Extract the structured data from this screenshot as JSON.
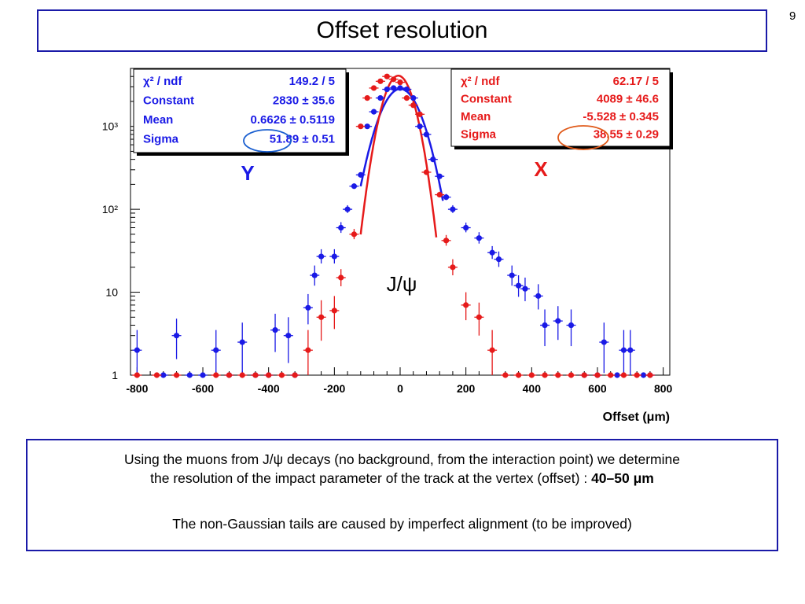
{
  "slide": {
    "title": "Offset resolution",
    "page_number": "9",
    "description_line1": "Using the muons from J/ψ decays (no background, from the interaction point) we determine",
    "description_line2": "the resolution of the impact parameter of the track at the vertex (offset) : ",
    "description_highlight": "40–50 μm",
    "description_line3": "The non-Gaussian tails are caused by imperfect alignment (to be improved)"
  },
  "chart_data": {
    "type": "scatter",
    "xlabel": "Offset (μm)",
    "ylabel": "",
    "xlim": [
      -820,
      820
    ],
    "ylim": [
      1,
      5000
    ],
    "y_scale": "log",
    "x_ticks": [
      "-800",
      "-600",
      "-400",
      "-200",
      "0",
      "200",
      "400",
      "600",
      "800"
    ],
    "y_ticks": [
      "1",
      "10",
      "10²",
      "10³"
    ],
    "annotation": "J/ψ",
    "colors": {
      "Y": "#1a1ae6",
      "X": "#e61a1a",
      "highlight_Y": "#1a5fd0",
      "highlight_X": "#e05a1a"
    },
    "series": [
      {
        "name": "Y",
        "x": [
          -800,
          -720,
          -680,
          -640,
          -600,
          -560,
          -520,
          -480,
          -440,
          -400,
          -380,
          -340,
          -320,
          -280,
          -260,
          -240,
          -200,
          -180,
          -160,
          -140,
          -120,
          -100,
          -80,
          -60,
          -40,
          -20,
          0,
          20,
          40,
          60,
          80,
          100,
          120,
          140,
          160,
          200,
          240,
          280,
          300,
          340,
          360,
          380,
          420,
          440,
          480,
          520,
          560,
          600,
          620,
          660,
          680,
          700,
          740,
          760
        ],
        "y": [
          2,
          1,
          3,
          1,
          1,
          2,
          1,
          2.5,
          1,
          1,
          3.5,
          3,
          1,
          6.5,
          16,
          27,
          27,
          60,
          100,
          190,
          260,
          1000,
          1500,
          2200,
          2800,
          2900,
          2900,
          2800,
          2200,
          1000,
          800,
          400,
          250,
          140,
          100,
          60,
          45,
          30,
          25,
          16,
          12,
          11,
          9,
          4,
          4.5,
          4,
          1,
          1,
          2.5,
          1,
          2,
          2,
          1,
          1
        ],
        "errors_up": [
          1.5,
          0,
          1.8,
          0,
          0,
          1.5,
          0,
          1.8,
          0,
          0,
          2,
          2,
          0,
          3,
          5,
          6,
          6,
          10,
          12,
          15,
          18,
          35,
          40,
          50,
          60,
          60,
          60,
          60,
          50,
          35,
          30,
          22,
          18,
          13,
          12,
          9,
          8,
          6,
          6,
          5,
          4,
          4,
          3.5,
          2.2,
          2.3,
          2.2,
          0,
          0,
          1.8,
          0,
          1.5,
          1.5,
          0,
          0
        ]
      },
      {
        "name": "X",
        "x": [
          -800,
          -740,
          -680,
          -560,
          -520,
          -480,
          -440,
          -400,
          -360,
          -320,
          -280,
          -240,
          -200,
          -180,
          -140,
          -120,
          -100,
          -80,
          -60,
          -40,
          -20,
          0,
          20,
          40,
          60,
          80,
          120,
          140,
          160,
          200,
          240,
          280,
          320,
          360,
          400,
          440,
          480,
          520,
          560,
          600,
          640,
          680,
          720,
          760
        ],
        "y": [
          1,
          1,
          1,
          1,
          1,
          1,
          1,
          1,
          1,
          1,
          2,
          5,
          6,
          15,
          50,
          1000,
          2200,
          2900,
          3500,
          4000,
          3700,
          3400,
          2200,
          1800,
          1400,
          280,
          150,
          42,
          20,
          7,
          5,
          2,
          1,
          1,
          1,
          1,
          1,
          1,
          1,
          1,
          1,
          1,
          1,
          1
        ],
        "errors_up": [
          0,
          0,
          0,
          0,
          0,
          0,
          0,
          0,
          0,
          0,
          1.5,
          3,
          3,
          4,
          8,
          35,
          50,
          60,
          65,
          70,
          65,
          65,
          50,
          45,
          40,
          18,
          13,
          7,
          5,
          3,
          2.5,
          1.5,
          0,
          0,
          0,
          0,
          0,
          0,
          0,
          0,
          0,
          0,
          0,
          0
        ]
      }
    ],
    "fits": [
      {
        "series": "Y",
        "mean": 0.6626,
        "sigma": 51.89,
        "constant": 2830,
        "range": [
          -120,
          130
        ]
      },
      {
        "series": "X",
        "mean": -5.528,
        "sigma": 38.55,
        "constant": 4089,
        "range": [
          -120,
          110
        ]
      }
    ],
    "stat_boxes": [
      {
        "series": "Y",
        "rows": [
          {
            "label": "χ² / ndf",
            "value": "149.2 / 5"
          },
          {
            "label": "Constant",
            "value": "2830 ± 35.6"
          },
          {
            "label": "Mean",
            "value": "0.6626 ± 0.5119"
          },
          {
            "label": "Sigma",
            "value": "51.89 ± 0.51"
          }
        ],
        "highlight": "51.89"
      },
      {
        "series": "X",
        "rows": [
          {
            "label": "χ² / ndf",
            "value": "62.17 / 5"
          },
          {
            "label": "Constant",
            "value": "4089 ± 46.6"
          },
          {
            "label": "Mean",
            "value": "-5.528 ± 0.345"
          },
          {
            "label": "Sigma",
            "value": "38.55 ± 0.29"
          }
        ],
        "highlight": "38.55"
      }
    ]
  }
}
